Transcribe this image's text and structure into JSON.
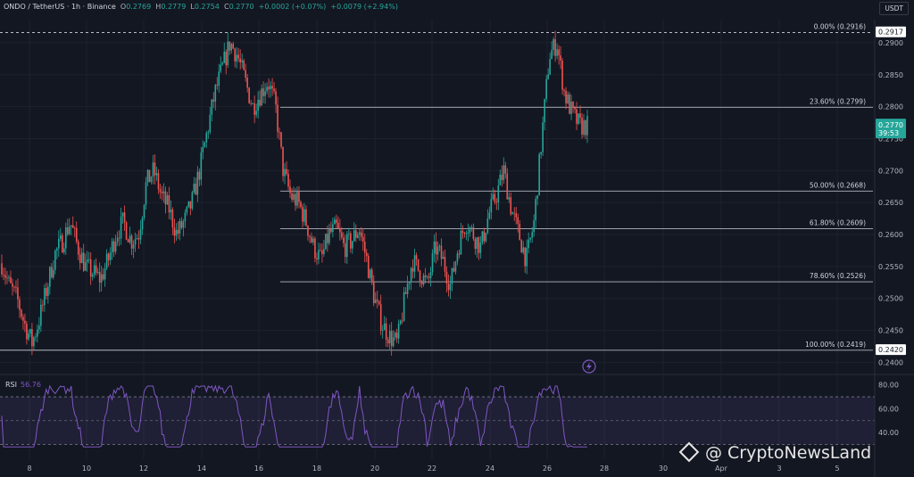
{
  "header": {
    "symbol": "ONDO / TetherUS · 1h · Binance",
    "o_label": "O",
    "o_val": "0.2769",
    "h_label": "H",
    "h_val": "0.2779",
    "l_label": "L",
    "l_val": "0.2754",
    "c_label": "C",
    "c_val": "0.2770",
    "change": "+0.0002 (+0.07%)",
    "change2": "+0.0079 (+2.94%)"
  },
  "currency_badge": "USDT",
  "watermark": "@ CryptoNewsLand",
  "colors": {
    "background": "#131722",
    "up": "#26a69a",
    "down": "#ef5350",
    "rsi_line": "#7e57c2",
    "fib_line": "#b2b5be",
    "price_tag": "#26a69a"
  },
  "icons": [
    "lightning-icon",
    "cryptonewsland-logo-icon"
  ],
  "chart_data": {
    "type": "candlestick",
    "ylim": [
      0.2395,
      0.2925
    ],
    "y_ticks": [
      "0.2900",
      "0.2850",
      "0.2800",
      "0.2750",
      "0.2700",
      "0.2650",
      "0.2600",
      "0.2550",
      "0.2500",
      "0.2450",
      "0.2400"
    ],
    "y_tick_values": [
      0.29,
      0.285,
      0.28,
      0.275,
      0.27,
      0.265,
      0.26,
      0.255,
      0.25,
      0.245,
      0.24
    ],
    "x_ticks": [
      "8",
      "10",
      "12",
      "14",
      "16",
      "18",
      "20",
      "22",
      "24",
      "26",
      "28",
      "30",
      "Apr",
      "3",
      "5"
    ],
    "current_price": "0.2770",
    "countdown": "39:53",
    "high_tag": "0.2917",
    "low_tag": "0.2420",
    "fib_levels": [
      {
        "label": "0.00% (0.2916)",
        "price": 0.2916
      },
      {
        "label": "23.60% (0.2799)",
        "price": 0.2799
      },
      {
        "label": "50.00% (0.2668)",
        "price": 0.2668
      },
      {
        "label": "61.80% (0.2609)",
        "price": 0.2609
      },
      {
        "label": "78.60% (0.2526)",
        "price": 0.2526
      },
      {
        "label": "100.00% (0.2419)",
        "price": 0.2419
      }
    ],
    "price_path": [
      [
        0.2555,
        0.252
      ],
      [
        0.25,
        0.246
      ],
      [
        0.243,
        0.247
      ],
      [
        0.252,
        0.257
      ],
      [
        0.259,
        0.262
      ],
      [
        0.258,
        0.255
      ],
      [
        0.254,
        0.253
      ],
      [
        0.256,
        0.26
      ],
      [
        0.262,
        0.259
      ],
      [
        0.26,
        0.268
      ],
      [
        0.27,
        0.266
      ],
      [
        0.264,
        0.26
      ],
      [
        0.262,
        0.265
      ],
      [
        0.27,
        0.276
      ],
      [
        0.282,
        0.286
      ],
      [
        0.29,
        0.288
      ],
      [
        0.284,
        0.28
      ],
      [
        0.282,
        0.284
      ],
      [
        0.28,
        0.27
      ],
      [
        0.266,
        0.265
      ],
      [
        0.262,
        0.258
      ],
      [
        0.256,
        0.26
      ],
      [
        0.261,
        0.258
      ],
      [
        0.259,
        0.261
      ],
      [
        0.256,
        0.25
      ],
      [
        0.246,
        0.244
      ],
      [
        0.243,
        0.25
      ],
      [
        0.256,
        0.254
      ],
      [
        0.252,
        0.258
      ],
      [
        0.256,
        0.252
      ],
      [
        0.258,
        0.262
      ],
      [
        0.26,
        0.258
      ],
      [
        0.263,
        0.266
      ],
      [
        0.27,
        0.264
      ],
      [
        0.26,
        0.256
      ],
      [
        0.262,
        0.275
      ],
      [
        0.288,
        0.29
      ],
      [
        0.282,
        0.279
      ],
      [
        0.277,
        0.277
      ]
    ],
    "rsi": {
      "label": "RSI",
      "value": "56.76",
      "ylim": [
        20,
        85
      ],
      "y_ticks": [
        "80.00",
        "60.00",
        "40.00"
      ],
      "y_tick_values": [
        80,
        60,
        40
      ],
      "band": [
        70,
        30
      ]
    }
  }
}
